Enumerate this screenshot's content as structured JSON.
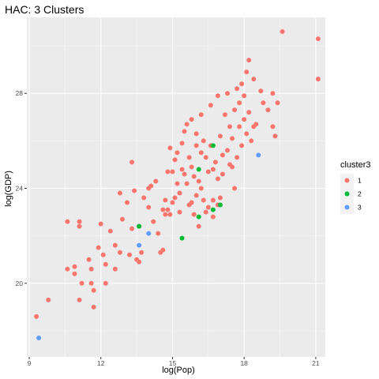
{
  "chart_data": {
    "type": "scatter",
    "title": "HAC: 3 Clusters",
    "xlabel": "log(Pop)",
    "ylabel": "log(GDP)",
    "xlim": [
      8.9,
      21.4
    ],
    "ylim": [
      16.9,
      31.2
    ],
    "x_ticks": [
      9,
      12,
      15,
      18,
      21
    ],
    "y_ticks": [
      20,
      24,
      28
    ],
    "grid": true,
    "legend": {
      "title": "cluster3",
      "placement": "right",
      "entries": [
        {
          "label": "1",
          "color": "#F8766D"
        },
        {
          "label": "2",
          "color": "#00BA38"
        },
        {
          "label": "3",
          "color": "#619CFF"
        }
      ]
    },
    "series": [
      {
        "name": "1",
        "color": "#F8766D",
        "points": [
          [
            9.3,
            18.6
          ],
          [
            9.8,
            19.3
          ],
          [
            10.6,
            20.6
          ],
          [
            10.6,
            22.6
          ],
          [
            10.9,
            20.7
          ],
          [
            10.9,
            20.4
          ],
          [
            11.1,
            22.6
          ],
          [
            11.1,
            22.4
          ],
          [
            11.2,
            20.0
          ],
          [
            11.1,
            19.3
          ],
          [
            11.5,
            21.0
          ],
          [
            11.6,
            20.6
          ],
          [
            11.6,
            20.0
          ],
          [
            11.7,
            19.7
          ],
          [
            11.7,
            19.0
          ],
          [
            11.9,
            21.5
          ],
          [
            12.0,
            22.5
          ],
          [
            12.1,
            21.2
          ],
          [
            12.2,
            20.0
          ],
          [
            12.2,
            20.8
          ],
          [
            12.4,
            22.2
          ],
          [
            12.6,
            21.6
          ],
          [
            12.6,
            20.6
          ],
          [
            12.8,
            23.8
          ],
          [
            12.8,
            21.3
          ],
          [
            12.9,
            22.7
          ],
          [
            13.1,
            23.4
          ],
          [
            13.2,
            21.2
          ],
          [
            13.3,
            22.3
          ],
          [
            13.3,
            25.1
          ],
          [
            13.4,
            23.9
          ],
          [
            13.5,
            21.0
          ],
          [
            13.6,
            22.4
          ],
          [
            13.6,
            20.9
          ],
          [
            13.7,
            21.3
          ],
          [
            13.8,
            23.6
          ],
          [
            14.0,
            24.0
          ],
          [
            14.0,
            23.2
          ],
          [
            14.1,
            24.1
          ],
          [
            14.2,
            22.6
          ],
          [
            14.3,
            24.3
          ],
          [
            14.4,
            22.1
          ],
          [
            14.5,
            21.3
          ],
          [
            14.6,
            23.1
          ],
          [
            14.6,
            21.4
          ],
          [
            14.7,
            22.9
          ],
          [
            14.7,
            23.5
          ],
          [
            14.8,
            24.7
          ],
          [
            14.8,
            23.1
          ],
          [
            14.9,
            25.7
          ],
          [
            14.9,
            22.9
          ],
          [
            15.0,
            23.4
          ],
          [
            15.0,
            24.7
          ],
          [
            15.1,
            23.6
          ],
          [
            15.1,
            25.2
          ],
          [
            15.2,
            24.2
          ],
          [
            15.2,
            25.5
          ],
          [
            15.3,
            23.0
          ],
          [
            15.3,
            23.8
          ],
          [
            15.4,
            24.8
          ],
          [
            15.4,
            25.9
          ],
          [
            15.5,
            24.6
          ],
          [
            15.5,
            26.4
          ],
          [
            15.6,
            26.7
          ],
          [
            15.6,
            24.2
          ],
          [
            15.7,
            23.3
          ],
          [
            15.7,
            25.3
          ],
          [
            15.8,
            24.9
          ],
          [
            15.8,
            23.4
          ],
          [
            15.8,
            26.9
          ],
          [
            15.9,
            22.9
          ],
          [
            15.9,
            24.5
          ],
          [
            16.0,
            25.8
          ],
          [
            16.0,
            23.7
          ],
          [
            16.0,
            26.3
          ],
          [
            16.1,
            24.3
          ],
          [
            16.1,
            22.4
          ],
          [
            16.2,
            25.5
          ],
          [
            16.2,
            27.1
          ],
          [
            16.2,
            24.0
          ],
          [
            16.3,
            23.5
          ],
          [
            16.3,
            26.0
          ],
          [
            16.4,
            25.3
          ],
          [
            16.4,
            23.0
          ],
          [
            16.5,
            24.7
          ],
          [
            16.5,
            23.2
          ],
          [
            16.6,
            25.8
          ],
          [
            16.6,
            27.5
          ],
          [
            16.7,
            24.8
          ],
          [
            16.7,
            23.5
          ],
          [
            16.8,
            25.1
          ],
          [
            16.9,
            27.9
          ],
          [
            16.9,
            24.4
          ],
          [
            17.0,
            26.2
          ],
          [
            17.0,
            23.6
          ],
          [
            17.1,
            25.4
          ],
          [
            17.1,
            24.6
          ],
          [
            17.2,
            27.1
          ],
          [
            17.3,
            25.6
          ],
          [
            17.3,
            28.0
          ],
          [
            17.4,
            26.6
          ],
          [
            17.4,
            25.0
          ],
          [
            17.5,
            26.1
          ],
          [
            17.5,
            24.9
          ],
          [
            17.6,
            27.3
          ],
          [
            17.6,
            24.0
          ],
          [
            17.7,
            28.2
          ],
          [
            17.7,
            25.3
          ],
          [
            17.8,
            27.6
          ],
          [
            17.8,
            26.6
          ],
          [
            17.9,
            28.4
          ],
          [
            17.9,
            25.8
          ],
          [
            18.0,
            26.9
          ],
          [
            18.0,
            27.9
          ],
          [
            18.1,
            28.9
          ],
          [
            18.1,
            26.3
          ],
          [
            18.2,
            29.4
          ],
          [
            18.2,
            27.2
          ],
          [
            18.3,
            26.0
          ],
          [
            18.4,
            26.6
          ],
          [
            18.4,
            28.6
          ],
          [
            18.5,
            26.7
          ],
          [
            18.7,
            28.1
          ],
          [
            18.8,
            27.6
          ],
          [
            19.0,
            27.3
          ],
          [
            19.2,
            28.0
          ],
          [
            19.2,
            26.6
          ],
          [
            19.3,
            26.2
          ],
          [
            19.4,
            27.6
          ],
          [
            19.6,
            30.6
          ],
          [
            21.1,
            30.3
          ],
          [
            21.1,
            28.6
          ],
          [
            16.7,
            22.8
          ],
          [
            16.9,
            23.3
          ]
        ]
      },
      {
        "name": "2",
        "color": "#00BA38",
        "points": [
          [
            13.6,
            22.4
          ],
          [
            15.4,
            21.9
          ],
          [
            16.1,
            22.8
          ],
          [
            16.1,
            24.8
          ],
          [
            16.7,
            23.1
          ],
          [
            16.7,
            25.8
          ],
          [
            17.0,
            23.3
          ]
        ]
      },
      {
        "name": "3",
        "color": "#619CFF",
        "points": [
          [
            9.4,
            17.7
          ],
          [
            13.6,
            21.6
          ],
          [
            14.0,
            22.1
          ],
          [
            18.6,
            25.4
          ]
        ]
      }
    ]
  }
}
